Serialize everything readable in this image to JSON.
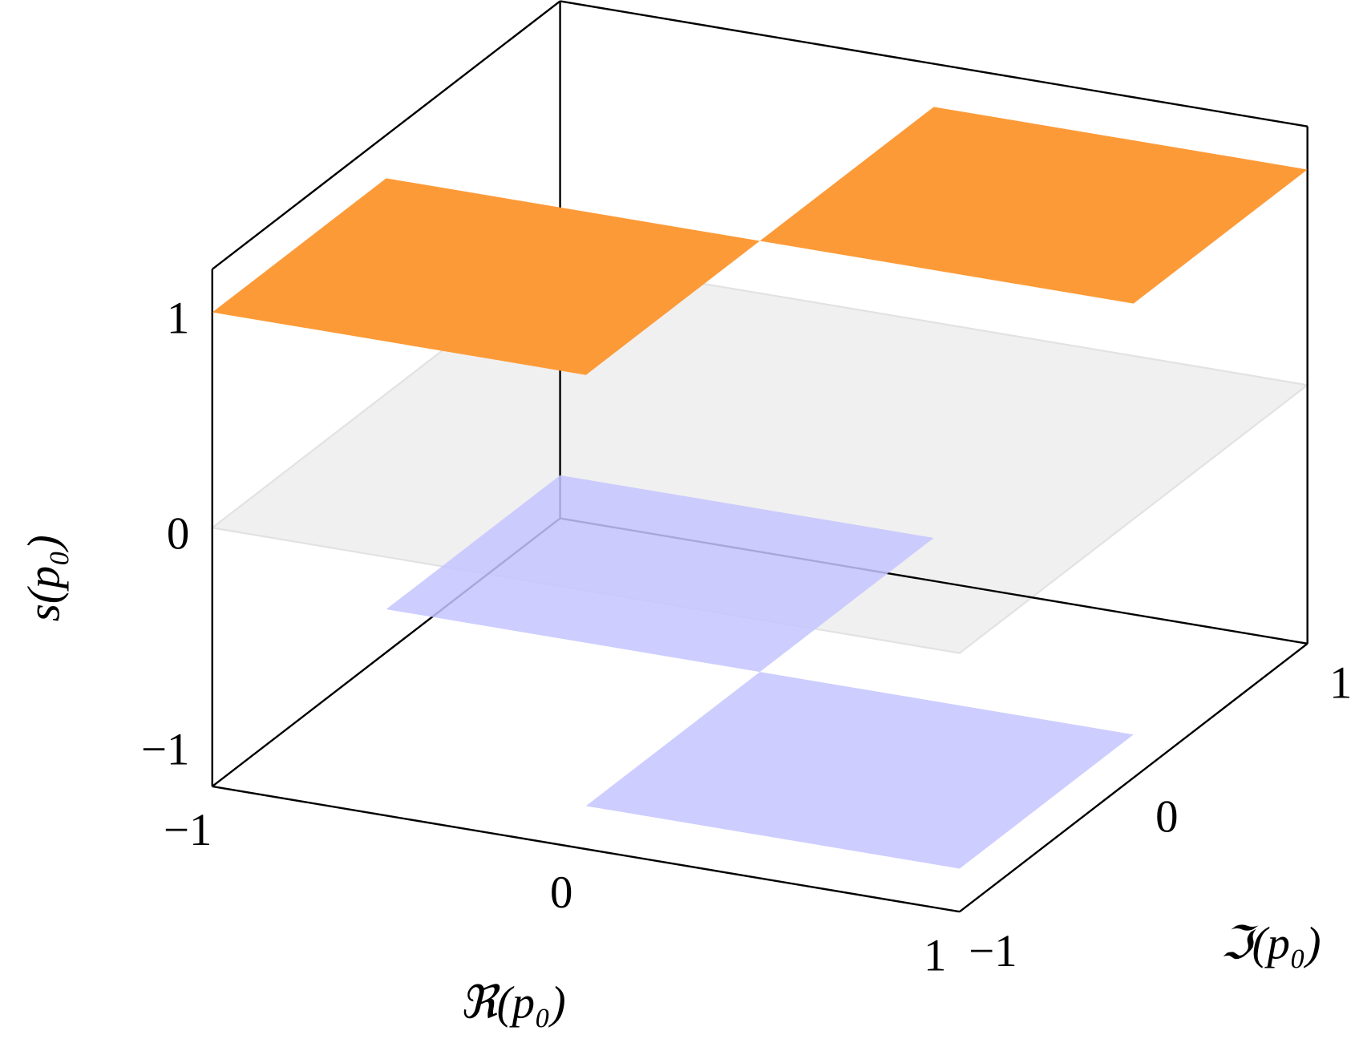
{
  "chart_data": {
    "type": "surface3d",
    "xlabel": "ℜ(p₀)",
    "ylabel": "ℑ(p₀)",
    "zlabel": "s(p₀)",
    "xlim": [
      -1,
      1
    ],
    "ylim": [
      -1,
      1
    ],
    "zlim": [
      -1.2,
      1.2
    ],
    "xticks": [
      {
        "value": -1,
        "label": "−1"
      },
      0,
      1
    ],
    "yticks": [
      {
        "value": -1,
        "label": "−1"
      },
      0,
      1
    ],
    "zticks": [
      {
        "value": -1,
        "label": "−1"
      },
      0,
      1
    ],
    "x_edges": [
      -1,
      0,
      1
    ],
    "y_edges": [
      -1,
      0,
      1
    ],
    "values": [
      [
        1,
        -1
      ],
      [
        -1,
        1
      ]
    ],
    "positive_color": "#fd9a38",
    "negative_color": "#c4c4ff",
    "zero_plane": {
      "z": 0,
      "color": "#f0f0f0"
    }
  }
}
